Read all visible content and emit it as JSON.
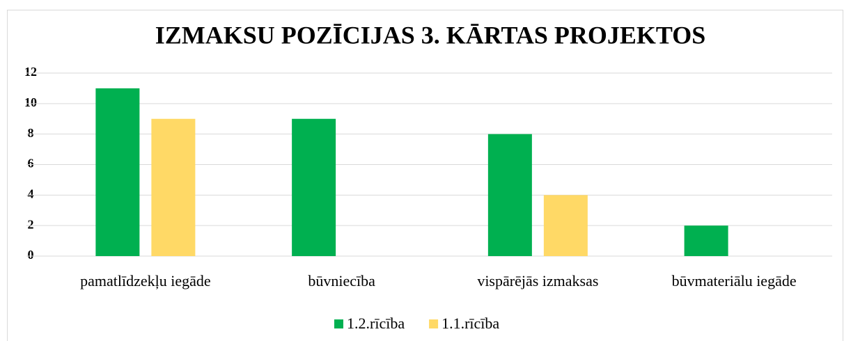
{
  "chart_data": {
    "type": "bar",
    "title": "IZMAKSU POZĪCIJAS 3. KĀRTAS PROJEKTOS",
    "categories": [
      "pamatlīdzekļu iegāde",
      "būvniecība",
      "vispārējās izmaksas",
      "būvmateriālu iegāde"
    ],
    "series": [
      {
        "name": "1.2.rīcība",
        "color": "#00b050",
        "values": [
          11,
          9,
          8,
          2
        ]
      },
      {
        "name": "1.1.rīcība",
        "color": "#ffd966",
        "values": [
          9,
          null,
          4,
          null
        ]
      }
    ],
    "ylim": [
      0,
      12
    ],
    "yticks": [
      0,
      2,
      4,
      6,
      8,
      10,
      12
    ],
    "grid": true,
    "legend": "bottom"
  }
}
